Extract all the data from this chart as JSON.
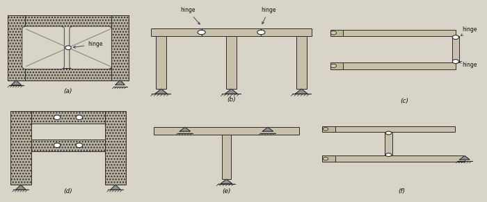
{
  "bg_color": "#d8d4c8",
  "line_color": "#2a2a2a",
  "beam_fc": "#c8c0aa",
  "hatch_fc": "#b8b0a0",
  "label_color": "#1a1a1a",
  "panels": [
    "(a)",
    "(b)",
    "(c)",
    "(d)",
    "(e)",
    "(f)"
  ],
  "figsize": [
    7.0,
    2.91
  ],
  "dpi": 100,
  "panel_positions": {
    "a": [
      0.005,
      0.52,
      0.27,
      0.46
    ],
    "b": [
      0.295,
      0.48,
      0.36,
      0.5
    ],
    "c": [
      0.665,
      0.47,
      0.33,
      0.51
    ],
    "d": [
      0.005,
      0.03,
      0.27,
      0.46
    ],
    "e": [
      0.295,
      0.03,
      0.34,
      0.46
    ],
    "f": [
      0.655,
      0.03,
      0.34,
      0.46
    ]
  }
}
